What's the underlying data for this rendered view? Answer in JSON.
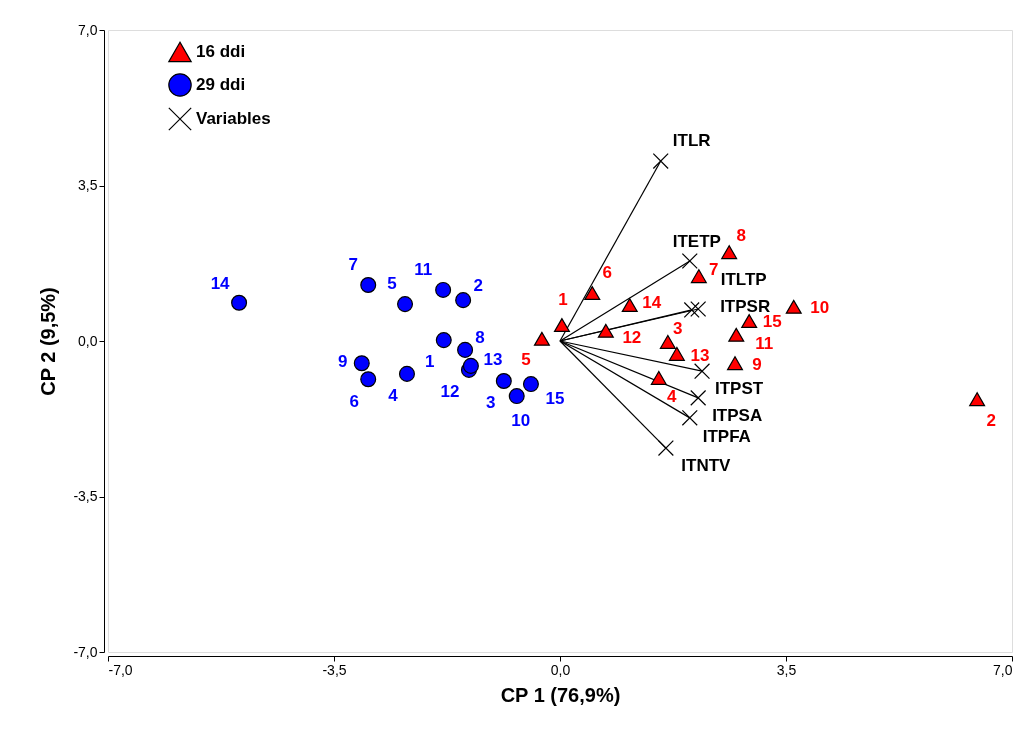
{
  "chart_data": {
    "type": "scatter",
    "xlabel": "CP 1 (76,9%)",
    "ylabel": "CP 2 (9,5%)",
    "xlim": [
      -7.0,
      7.0
    ],
    "ylim": [
      -7.0,
      7.0
    ],
    "xticks": [
      {
        "value": -7.0,
        "label": "-7,0"
      },
      {
        "value": -3.5,
        "label": "-3,5"
      },
      {
        "value": 0,
        "label": "0,0"
      },
      {
        "value": 3.5,
        "label": "3,5"
      },
      {
        "value": 7.0,
        "label": "7,0"
      }
    ],
    "yticks": [
      {
        "value": -7.0,
        "label": "-7,0"
      },
      {
        "value": -3.5,
        "label": "-3,5"
      },
      {
        "value": 0,
        "label": "0,0"
      },
      {
        "value": 3.5,
        "label": "3,5"
      },
      {
        "value": 7.0,
        "label": "7,0"
      }
    ],
    "grid": false,
    "legend": "top left",
    "series": [
      {
        "name": "16 ddi",
        "marker": "triangle",
        "color": "#ff0000",
        "x": [
          0.03,
          6.46,
          1.67,
          1.53,
          -0.28,
          0.5,
          2.15,
          2.62,
          2.71,
          3.62,
          2.73,
          0.71,
          1.81,
          1.08,
          2.93
        ],
        "values": [
          0.36,
          -1.31,
          -0.02,
          -0.83,
          0.05,
          1.08,
          1.46,
          2.0,
          -0.5,
          0.77,
          0.14,
          0.23,
          -0.29,
          0.81,
          0.45
        ]
      },
      {
        "name": "29 ddi",
        "marker": "circle",
        "color": "#0000ff",
        "x": [
          -1.8,
          -1.5,
          -0.87,
          -2.37,
          -2.4,
          -2.97,
          -2.97,
          -1.47,
          -3.07,
          -0.67,
          -1.81,
          -1.41,
          -1.38,
          -4.97,
          -0.45
        ],
        "values": [
          0.02,
          0.92,
          -0.9,
          -0.74,
          0.83,
          -0.86,
          1.26,
          -0.2,
          -0.5,
          -1.24,
          1.15,
          -0.65,
          -0.56,
          0.86,
          -0.97
        ]
      },
      {
        "name": "Variables",
        "marker": "cross",
        "line_style": "solid",
        "color": "#000000",
        "x": [
          1.56,
          2.01,
          2.04,
          2.14,
          2.2,
          2.14,
          2.01,
          1.64
        ],
        "values": [
          4.05,
          1.8,
          0.7,
          0.72,
          -0.68,
          -1.28,
          -1.73,
          -2.41
        ]
      }
    ],
    "annotations": [
      {
        "text": "1",
        "x": 0.03,
        "y": 0.36
      },
      {
        "text": "2",
        "x": 6.46,
        "y": -1.31
      },
      {
        "text": "3",
        "x": 1.67,
        "y": -0.02
      },
      {
        "text": "4",
        "x": 1.53,
        "y": -0.83
      },
      {
        "text": "5",
        "x": -0.28,
        "y": 0.05
      },
      {
        "text": "6",
        "x": 0.5,
        "y": 1.08
      },
      {
        "text": "7",
        "x": 2.15,
        "y": 1.46
      },
      {
        "text": "8",
        "x": 2.62,
        "y": 2.0
      },
      {
        "text": "9",
        "x": 2.71,
        "y": -0.5
      },
      {
        "text": "10",
        "x": 3.62,
        "y": 0.77
      },
      {
        "text": "11",
        "x": 2.73,
        "y": 0.14
      },
      {
        "text": "12",
        "x": 0.71,
        "y": 0.23
      },
      {
        "text": "13",
        "x": 1.81,
        "y": -0.29
      },
      {
        "text": "14",
        "x": 1.08,
        "y": 0.81
      },
      {
        "text": "15",
        "x": 2.93,
        "y": 0.45
      },
      {
        "text": "1",
        "x": -1.8,
        "y": 0.02
      },
      {
        "text": "2",
        "x": -1.5,
        "y": 0.92
      },
      {
        "text": "3",
        "x": -0.87,
        "y": -0.9
      },
      {
        "text": "4",
        "x": -2.37,
        "y": -0.74
      },
      {
        "text": "5",
        "x": -2.4,
        "y": 0.83
      },
      {
        "text": "6",
        "x": -2.97,
        "y": -0.86
      },
      {
        "text": "7",
        "x": -2.97,
        "y": 1.26
      },
      {
        "text": "8",
        "x": -1.47,
        "y": -0.2
      },
      {
        "text": "9",
        "x": -3.07,
        "y": -0.5
      },
      {
        "text": "10",
        "x": -0.67,
        "y": -1.24
      },
      {
        "text": "11",
        "x": -1.81,
        "y": 1.15
      },
      {
        "text": "12",
        "x": -1.41,
        "y": -0.65
      },
      {
        "text": "13",
        "x": -1.38,
        "y": -0.56
      },
      {
        "text": "14",
        "x": -4.97,
        "y": 0.86
      },
      {
        "text": "15",
        "x": -0.45,
        "y": -0.97
      },
      {
        "text": "ITLR",
        "x": 1.56,
        "y": 4.05
      },
      {
        "text": "ITETP",
        "x": 2.01,
        "y": 1.8
      },
      {
        "text": "ITLTP",
        "x": 2.04,
        "y": 0.7
      },
      {
        "text": "ITPSR",
        "x": 2.14,
        "y": 0.72
      },
      {
        "text": "ITPST",
        "x": 2.2,
        "y": -0.68
      },
      {
        "text": "ITPSA",
        "x": 2.14,
        "y": -1.28
      },
      {
        "text": "ITPFA",
        "x": 2.01,
        "y": -1.73
      },
      {
        "text": "ITNTV",
        "x": 1.64,
        "y": -2.41
      }
    ]
  }
}
